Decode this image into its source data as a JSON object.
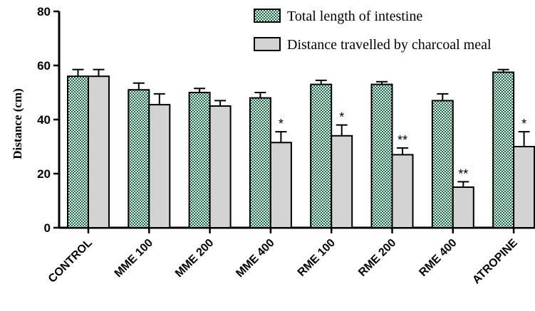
{
  "chart_data": {
    "type": "bar",
    "title": "",
    "xlabel": "",
    "ylabel": "Distance (cm)",
    "ylim": [
      0,
      80
    ],
    "yticks": [
      "0",
      "20",
      "40",
      "60",
      "80"
    ],
    "grid": false,
    "legend_position": "top-right",
    "categories": [
      "CONTROL",
      "MME 100",
      "MME 200",
      "MME 400",
      "RME 100",
      "RME 200",
      "RME 400",
      "ATROPINE"
    ],
    "series": [
      {
        "name": "Total length of intestine",
        "pattern": "checkered",
        "color": "#1f6b4f",
        "values": [
          56,
          51,
          50,
          48,
          53,
          53,
          47,
          57.5
        ],
        "errors": [
          2.5,
          2.5,
          1.5,
          2,
          1.5,
          1,
          2.5,
          1
        ],
        "annotations": [
          "",
          "",
          "",
          "",
          "",
          "",
          "",
          ""
        ]
      },
      {
        "name": "Distance travelled by charcoal meal",
        "color": "#d3d3d3",
        "values": [
          56,
          45.5,
          45,
          31.5,
          34,
          27,
          15,
          30
        ],
        "errors": [
          2.5,
          4,
          2,
          4,
          4,
          2.5,
          2,
          5.5
        ],
        "annotations": [
          "",
          "",
          "",
          "*",
          "*",
          "**",
          "**",
          "*"
        ]
      }
    ]
  }
}
